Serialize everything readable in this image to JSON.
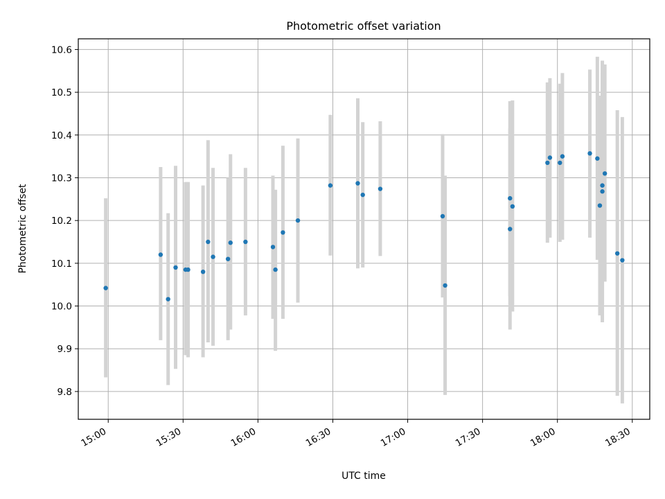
{
  "chart_data": {
    "type": "scatter",
    "title": "Photometric offset variation",
    "xlabel": "UTC time",
    "ylabel": "Photometric offset",
    "grid": true,
    "xlim": [
      "14:48",
      "18:37"
    ],
    "ylim": [
      9.735,
      10.625
    ],
    "x_ticks": [
      "15:00",
      "15:30",
      "16:00",
      "16:30",
      "17:00",
      "17:30",
      "18:00",
      "18:30"
    ],
    "y_ticks": [
      "9.8",
      "9.9",
      "10.0",
      "10.1",
      "10.2",
      "10.3",
      "10.4",
      "10.5",
      "10.6"
    ],
    "colors": {
      "point": "#1f77b4",
      "errorbar": "#d3d3d3",
      "grid": "#b0b0b0"
    },
    "series": [
      {
        "points": [
          {
            "x": "14:59",
            "y": 10.042,
            "lo": 9.833,
            "hi": 10.252
          },
          {
            "x": "15:21",
            "y": 10.12,
            "lo": 9.92,
            "hi": 10.325
          },
          {
            "x": "15:24",
            "y": 10.016,
            "lo": 9.815,
            "hi": 10.217
          },
          {
            "x": "15:27",
            "y": 10.09,
            "lo": 9.853,
            "hi": 10.328
          },
          {
            "x": "15:31",
            "y": 10.085,
            "lo": 9.885,
            "hi": 10.29
          },
          {
            "x": "15:32",
            "y": 10.085,
            "lo": 9.88,
            "hi": 10.29
          },
          {
            "x": "15:38",
            "y": 10.08,
            "lo": 9.88,
            "hi": 10.282
          },
          {
            "x": "15:40",
            "y": 10.15,
            "lo": 9.915,
            "hi": 10.388
          },
          {
            "x": "15:42",
            "y": 10.115,
            "lo": 9.907,
            "hi": 10.323
          },
          {
            "x": "15:48",
            "y": 10.11,
            "lo": 9.92,
            "hi": 10.3
          },
          {
            "x": "15:49",
            "y": 10.148,
            "lo": 9.945,
            "hi": 10.355
          },
          {
            "x": "15:55",
            "y": 10.15,
            "lo": 9.978,
            "hi": 10.323
          },
          {
            "x": "16:06",
            "y": 10.138,
            "lo": 9.97,
            "hi": 10.305
          },
          {
            "x": "16:07",
            "y": 10.085,
            "lo": 9.895,
            "hi": 10.272
          },
          {
            "x": "16:10",
            "y": 10.172,
            "lo": 9.97,
            "hi": 10.375
          },
          {
            "x": "16:16",
            "y": 10.2,
            "lo": 10.008,
            "hi": 10.392
          },
          {
            "x": "16:29",
            "y": 10.282,
            "lo": 10.118,
            "hi": 10.447
          },
          {
            "x": "16:40",
            "y": 10.287,
            "lo": 10.088,
            "hi": 10.486
          },
          {
            "x": "16:42",
            "y": 10.26,
            "lo": 10.09,
            "hi": 10.43
          },
          {
            "x": "16:49",
            "y": 10.274,
            "lo": 10.117,
            "hi": 10.432
          },
          {
            "x": "17:14",
            "y": 10.21,
            "lo": 10.02,
            "hi": 10.402
          },
          {
            "x": "17:15",
            "y": 10.048,
            "lo": 9.792,
            "hi": 10.305
          },
          {
            "x": "17:41",
            "y": 10.252,
            "lo": 10.023,
            "hi": 10.479
          },
          {
            "x": "17:41",
            "y": 10.18,
            "lo": 9.945,
            "hi": 10.415
          },
          {
            "x": "17:42",
            "y": 10.233,
            "lo": 9.987,
            "hi": 10.481
          },
          {
            "x": "17:56",
            "y": 10.335,
            "lo": 10.148,
            "hi": 10.523
          },
          {
            "x": "17:57",
            "y": 10.347,
            "lo": 10.16,
            "hi": 10.533
          },
          {
            "x": "18:01",
            "y": 10.335,
            "lo": 10.15,
            "hi": 10.52
          },
          {
            "x": "18:02",
            "y": 10.35,
            "lo": 10.155,
            "hi": 10.545
          },
          {
            "x": "18:13",
            "y": 10.357,
            "lo": 10.16,
            "hi": 10.553
          },
          {
            "x": "18:16",
            "y": 10.345,
            "lo": 10.108,
            "hi": 10.583
          },
          {
            "x": "18:17",
            "y": 10.235,
            "lo": 9.978,
            "hi": 10.492
          },
          {
            "x": "18:18",
            "y": 10.282,
            "lo": 9.995,
            "hi": 10.545
          },
          {
            "x": "18:18",
            "y": 10.268,
            "lo": 9.962,
            "hi": 10.574
          },
          {
            "x": "18:19",
            "y": 10.31,
            "lo": 10.057,
            "hi": 10.565
          },
          {
            "x": "18:24",
            "y": 10.123,
            "lo": 9.79,
            "hi": 10.458
          },
          {
            "x": "18:26",
            "y": 10.107,
            "lo": 9.772,
            "hi": 10.442
          }
        ]
      }
    ]
  }
}
